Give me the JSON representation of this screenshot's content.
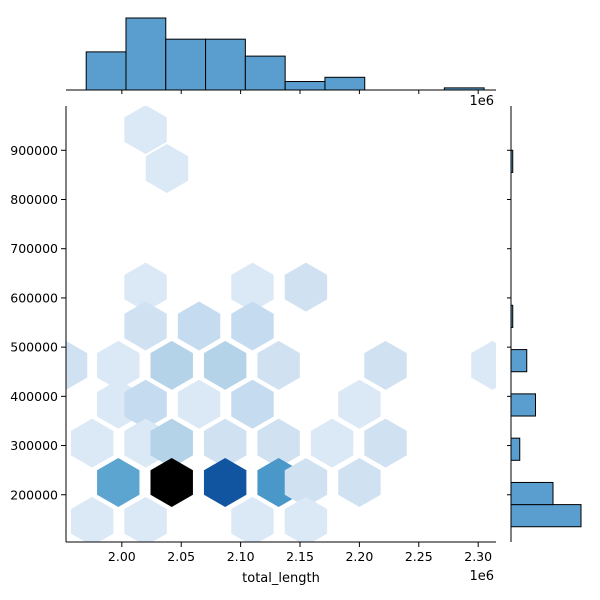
{
  "chart_data": {
    "type": "hexbin-joint",
    "xlabel": "total_length",
    "ylabel": "",
    "x_offset_label": "1e6",
    "top_offset_label": "1e6",
    "xlim": [
      1.953,
      2.315
    ],
    "ylim": [
      104000,
      990000
    ],
    "x_ticks": [
      2.0,
      2.05,
      2.1,
      2.15,
      2.2,
      2.25,
      2.3
    ],
    "x_tick_labels": [
      "2.00",
      "2.05",
      "2.10",
      "2.15",
      "2.20",
      "2.25",
      "2.30"
    ],
    "y_ticks": [
      200000,
      300000,
      400000,
      500000,
      600000,
      700000,
      800000,
      900000
    ],
    "y_tick_labels": [
      "200000",
      "300000",
      "400000",
      "500000",
      "600000",
      "700000",
      "800000",
      "900000"
    ],
    "colors": {
      "hist": "#5a9ecf",
      "edge": "#000000",
      "hex_max": "#000000"
    },
    "hexbins": [
      {
        "x": 2.02,
        "y": 942000,
        "count": 1
      },
      {
        "x": 2.038,
        "y": 863000,
        "count": 1
      },
      {
        "x": 2.02,
        "y": 622000,
        "count": 1
      },
      {
        "x": 2.11,
        "y": 622000,
        "count": 1
      },
      {
        "x": 2.155,
        "y": 622000,
        "count": 2
      },
      {
        "x": 2.02,
        "y": 543000,
        "count": 2
      },
      {
        "x": 2.065,
        "y": 543000,
        "count": 3
      },
      {
        "x": 2.11,
        "y": 543000,
        "count": 3
      },
      {
        "x": 1.953,
        "y": 463000,
        "count": 2
      },
      {
        "x": 1.997,
        "y": 463000,
        "count": 1
      },
      {
        "x": 2.042,
        "y": 463000,
        "count": 4
      },
      {
        "x": 2.087,
        "y": 463000,
        "count": 4
      },
      {
        "x": 2.132,
        "y": 463000,
        "count": 2
      },
      {
        "x": 2.222,
        "y": 463000,
        "count": 2
      },
      {
        "x": 2.312,
        "y": 463000,
        "count": 1
      },
      {
        "x": 1.997,
        "y": 384000,
        "count": 1
      },
      {
        "x": 2.02,
        "y": 384000,
        "count": 3
      },
      {
        "x": 2.065,
        "y": 384000,
        "count": 1
      },
      {
        "x": 2.11,
        "y": 384000,
        "count": 3
      },
      {
        "x": 2.2,
        "y": 384000,
        "count": 1
      },
      {
        "x": 1.975,
        "y": 305000,
        "count": 1
      },
      {
        "x": 2.02,
        "y": 305000,
        "count": 1
      },
      {
        "x": 2.042,
        "y": 305000,
        "count": 4
      },
      {
        "x": 2.087,
        "y": 305000,
        "count": 2
      },
      {
        "x": 2.132,
        "y": 305000,
        "count": 2
      },
      {
        "x": 2.177,
        "y": 305000,
        "count": 1
      },
      {
        "x": 2.222,
        "y": 305000,
        "count": 2
      },
      {
        "x": 1.997,
        "y": 225000,
        "count": 8
      },
      {
        "x": 2.042,
        "y": 225000,
        "count": 16
      },
      {
        "x": 2.087,
        "y": 225000,
        "count": 13
      },
      {
        "x": 2.132,
        "y": 225000,
        "count": 9
      },
      {
        "x": 2.155,
        "y": 225000,
        "count": 2
      },
      {
        "x": 2.2,
        "y": 225000,
        "count": 2
      },
      {
        "x": 1.975,
        "y": 146000,
        "count": 1
      },
      {
        "x": 2.02,
        "y": 146000,
        "count": 1
      },
      {
        "x": 2.11,
        "y": 146000,
        "count": 1
      },
      {
        "x": 2.155,
        "y": 146000,
        "count": 1
      }
    ],
    "x_marginal": {
      "edges": [
        1.97,
        2.0035,
        2.037,
        2.0705,
        2.104,
        2.1375,
        2.171,
        2.2045,
        2.238,
        2.2715,
        2.305
      ],
      "counts": [
        9,
        17,
        12,
        12,
        8,
        2,
        3,
        0,
        0,
        0.5
      ]
    },
    "y_marginal": {
      "edges": [
        135000,
        180000,
        225000,
        270000,
        315000,
        360000,
        405000,
        450000,
        495000,
        540000,
        585000,
        630000,
        675000,
        720000,
        765000,
        810000,
        855000,
        900000,
        945000
      ],
      "counts": [
        40,
        24,
        0,
        5,
        0,
        14,
        0,
        9,
        0,
        1,
        0,
        0,
        0,
        0,
        0,
        0,
        1,
        0
      ]
    }
  }
}
